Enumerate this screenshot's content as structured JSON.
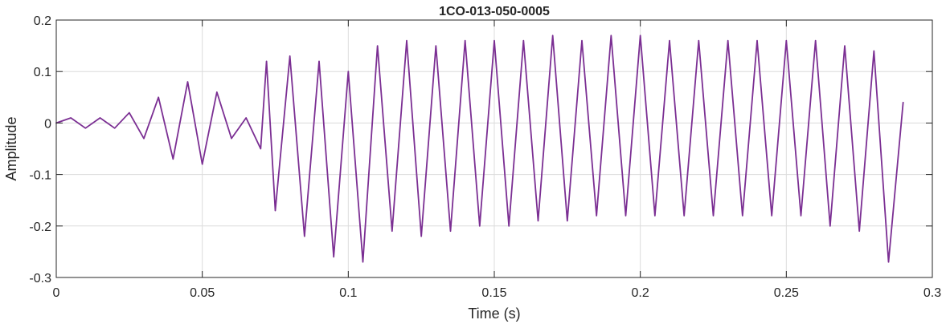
{
  "chart_data": {
    "type": "line",
    "title": "1CO-013-050-0005",
    "xlabel": "Time (s)",
    "ylabel": "Amplitude",
    "xlim": [
      0,
      0.3
    ],
    "ylim": [
      -0.3,
      0.2
    ],
    "grid": true,
    "x_ticks": [
      0,
      0.05,
      0.1,
      0.15,
      0.2,
      0.25,
      0.3
    ],
    "x_tick_labels": [
      "0",
      "0.05",
      "0.1",
      "0.15",
      "0.2",
      "0.25",
      "0.3"
    ],
    "y_ticks": [
      0.2,
      0.1,
      0,
      -0.1,
      -0.2,
      -0.3
    ],
    "y_tick_labels": [
      "0.2",
      "0.1",
      "0",
      "-0.1",
      "-0.2",
      "-0.3"
    ],
    "series_color": "#7b2f93",
    "series": [
      {
        "x": [
          0,
          0.005,
          0.01,
          0.015,
          0.02,
          0.025,
          0.03,
          0.035,
          0.04,
          0.045,
          0.05,
          0.055,
          0.06,
          0.065,
          0.07,
          0.072,
          0.075,
          0.08,
          0.085,
          0.09,
          0.095,
          0.1,
          0.105,
          0.11,
          0.115,
          0.12,
          0.125,
          0.13,
          0.135,
          0.14,
          0.145,
          0.15,
          0.155,
          0.16,
          0.165,
          0.17,
          0.175,
          0.18,
          0.185,
          0.19,
          0.195,
          0.2,
          0.205,
          0.21,
          0.215,
          0.22,
          0.225,
          0.23,
          0.235,
          0.24,
          0.245,
          0.25,
          0.255,
          0.26,
          0.265,
          0.27,
          0.275,
          0.28,
          0.285,
          0.29
        ],
        "values": [
          0,
          0.01,
          -0.01,
          0.01,
          -0.01,
          0.02,
          -0.03,
          0.05,
          -0.07,
          0.08,
          -0.08,
          0.06,
          -0.03,
          0.01,
          -0.05,
          0.12,
          -0.17,
          0.13,
          -0.22,
          0.12,
          -0.26,
          0.1,
          -0.27,
          0.15,
          -0.21,
          0.16,
          -0.22,
          0.15,
          -0.21,
          0.16,
          -0.2,
          0.16,
          -0.2,
          0.16,
          -0.19,
          0.17,
          -0.19,
          0.16,
          -0.18,
          0.17,
          -0.18,
          0.17,
          -0.18,
          0.16,
          -0.18,
          0.16,
          -0.18,
          0.16,
          -0.18,
          0.16,
          -0.18,
          0.16,
          -0.18,
          0.16,
          -0.2,
          0.15,
          -0.21,
          0.14,
          -0.27,
          0.04
        ]
      }
    ]
  }
}
